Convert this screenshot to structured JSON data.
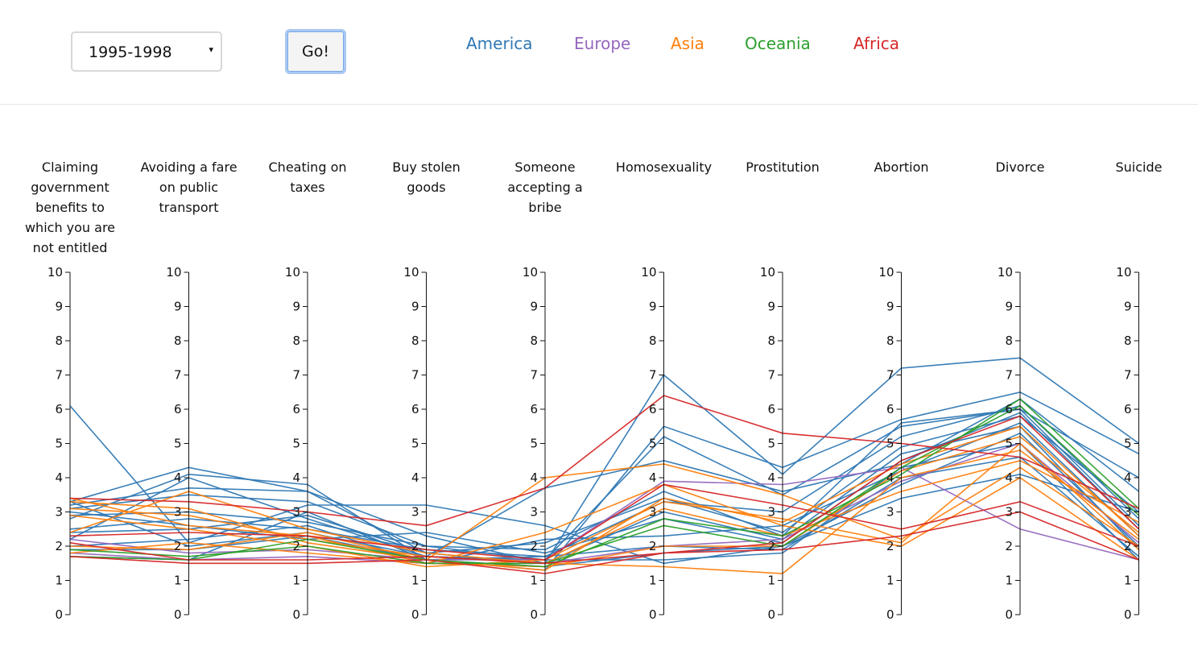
{
  "controls": {
    "year_select": {
      "value": "1995-1998",
      "arrow": "▾"
    },
    "go_label": "Go!"
  },
  "legend": [
    {
      "label": "America",
      "color": "#2f78b4"
    },
    {
      "label": "Europe",
      "color": "#9467bd"
    },
    {
      "label": "Asia",
      "color": "#ff7f0e"
    },
    {
      "label": "Oceania",
      "color": "#2ca02c"
    },
    {
      "label": "Africa",
      "color": "#d62728"
    }
  ],
  "chart_data": {
    "type": "parallel_coordinates",
    "dimensions": [
      {
        "label": [
          "Claiming",
          "government",
          "benefits to",
          "which you are",
          "not entitled"
        ]
      },
      {
        "label": [
          "Avoiding a fare",
          "on public",
          "transport"
        ]
      },
      {
        "label": [
          "Cheating on",
          "taxes"
        ]
      },
      {
        "label": [
          "Buy stolen",
          "goods"
        ]
      },
      {
        "label": [
          "Someone",
          "accepting a",
          "bribe"
        ]
      },
      {
        "label": [
          "Homosexuality"
        ]
      },
      {
        "label": [
          "Prostitution"
        ]
      },
      {
        "label": [
          "Abortion"
        ]
      },
      {
        "label": [
          "Divorce"
        ]
      },
      {
        "label": [
          "Suicide"
        ]
      }
    ],
    "ylim": [
      0,
      10
    ],
    "ticks": [
      0,
      1,
      2,
      3,
      4,
      5,
      6,
      7,
      8,
      9,
      10
    ],
    "series": [
      {
        "group": "America",
        "values": [
          6.1,
          2.1,
          3.2,
          3.2,
          2.6,
          1.5,
          2.0,
          3.4,
          4.1,
          3.0
        ]
      },
      {
        "group": "America",
        "values": [
          3.3,
          4.3,
          3.6,
          2.3,
          1.5,
          7.0,
          4.1,
          7.2,
          7.5,
          5.0
        ]
      },
      {
        "group": "America",
        "values": [
          2.8,
          4.1,
          3.8,
          1.6,
          1.3,
          5.5,
          4.3,
          5.7,
          6.5,
          4.7
        ]
      },
      {
        "group": "America",
        "values": [
          3.1,
          3.5,
          3.3,
          2.0,
          1.6,
          5.2,
          3.5,
          5.5,
          6.0,
          4.0
        ]
      },
      {
        "group": "America",
        "values": [
          2.2,
          4.0,
          2.8,
          1.7,
          3.7,
          4.5,
          3.6,
          4.4,
          6.3,
          3.6
        ]
      },
      {
        "group": "America",
        "values": [
          3.2,
          3.7,
          3.6,
          1.8,
          2.1,
          3.4,
          2.4,
          4.9,
          5.8,
          3.0
        ]
      },
      {
        "group": "America",
        "values": [
          2.5,
          2.8,
          2.5,
          1.9,
          1.7,
          3.3,
          3.0,
          5.2,
          6.1,
          2.8
        ]
      },
      {
        "group": "America",
        "values": [
          3.0,
          2.6,
          2.2,
          2.4,
          1.8,
          2.8,
          2.1,
          4.5,
          5.9,
          2.5
        ]
      },
      {
        "group": "America",
        "values": [
          2.0,
          2.2,
          2.6,
          1.5,
          2.2,
          2.3,
          2.6,
          4.2,
          5.6,
          2.3
        ]
      },
      {
        "group": "America",
        "values": [
          1.7,
          1.6,
          3.0,
          1.6,
          1.4,
          1.8,
          2.0,
          3.8,
          5.3,
          2.0
        ]
      },
      {
        "group": "America",
        "values": [
          3.3,
          2.0,
          2.4,
          1.7,
          1.6,
          1.6,
          1.8,
          4.3,
          5.0,
          1.6
        ]
      },
      {
        "group": "America",
        "values": [
          2.9,
          3.0,
          2.7,
          2.0,
          1.9,
          3.6,
          2.3,
          5.6,
          6.0,
          2.6
        ]
      },
      {
        "group": "America",
        "values": [
          2.4,
          2.5,
          2.9,
          1.8,
          1.5,
          3.0,
          2.2,
          4.7,
          5.5,
          1.9
        ]
      },
      {
        "group": "America",
        "values": [
          1.9,
          1.9,
          2.3,
          1.6,
          1.7,
          2.0,
          1.9,
          4.0,
          4.6,
          1.7
        ]
      },
      {
        "group": "Europe",
        "values": [
          2.2,
          1.8,
          1.9,
          1.6,
          1.6,
          3.9,
          3.8,
          4.3,
          2.5,
          1.6
        ]
      },
      {
        "group": "Europe",
        "values": [
          1.8,
          1.6,
          1.7,
          1.5,
          1.5,
          2.0,
          2.2,
          3.9,
          5.0,
          2.1
        ]
      },
      {
        "group": "Asia",
        "values": [
          3.3,
          3.1,
          2.1,
          1.6,
          4.0,
          4.4,
          3.5,
          2.2,
          4.3,
          2.0
        ]
      },
      {
        "group": "Asia",
        "values": [
          3.4,
          2.6,
          2.3,
          1.5,
          2.4,
          3.8,
          2.6,
          2.0,
          4.0,
          1.6
        ]
      },
      {
        "group": "Asia",
        "values": [
          2.9,
          2.5,
          2.0,
          1.4,
          1.6,
          3.3,
          2.8,
          2.1,
          5.0,
          1.9
        ]
      },
      {
        "group": "Asia",
        "values": [
          3.1,
          2.9,
          2.2,
          1.7,
          1.5,
          1.4,
          1.2,
          4.0,
          4.8,
          2.2
        ]
      },
      {
        "group": "Asia",
        "values": [
          1.8,
          2.1,
          1.8,
          1.5,
          1.4,
          2.0,
          2.0,
          4.2,
          5.2,
          2.4
        ]
      },
      {
        "group": "Asia",
        "values": [
          2.0,
          1.9,
          2.4,
          1.6,
          1.3,
          3.4,
          2.7,
          4.4,
          5.5,
          2.3
        ]
      },
      {
        "group": "Asia",
        "values": [
          2.4,
          3.6,
          2.5,
          1.8,
          1.5,
          3.1,
          2.3,
          3.6,
          4.5,
          2.7
        ]
      },
      {
        "group": "Oceania",
        "values": [
          1.7,
          1.6,
          2.2,
          1.6,
          1.4,
          2.8,
          2.3,
          4.1,
          6.3,
          3.1
        ]
      },
      {
        "group": "Oceania",
        "values": [
          1.9,
          1.7,
          2.0,
          1.5,
          1.5,
          2.6,
          2.0,
          4.3,
          6.1,
          2.9
        ]
      },
      {
        "group": "Africa",
        "values": [
          3.4,
          3.3,
          3.0,
          2.6,
          3.7,
          6.4,
          5.3,
          5.0,
          4.6,
          3.1
        ]
      },
      {
        "group": "Africa",
        "values": [
          2.1,
          1.6,
          1.6,
          1.7,
          1.5,
          1.8,
          1.9,
          2.3,
          3.0,
          1.6
        ]
      },
      {
        "group": "Africa",
        "values": [
          2.3,
          2.4,
          2.3,
          1.9,
          1.6,
          3.8,
          3.2,
          2.5,
          3.3,
          2.0
        ]
      },
      {
        "group": "Africa",
        "values": [
          1.7,
          1.5,
          1.5,
          1.6,
          1.2,
          1.8,
          2.1,
          4.5,
          5.8,
          2.5
        ]
      }
    ]
  }
}
